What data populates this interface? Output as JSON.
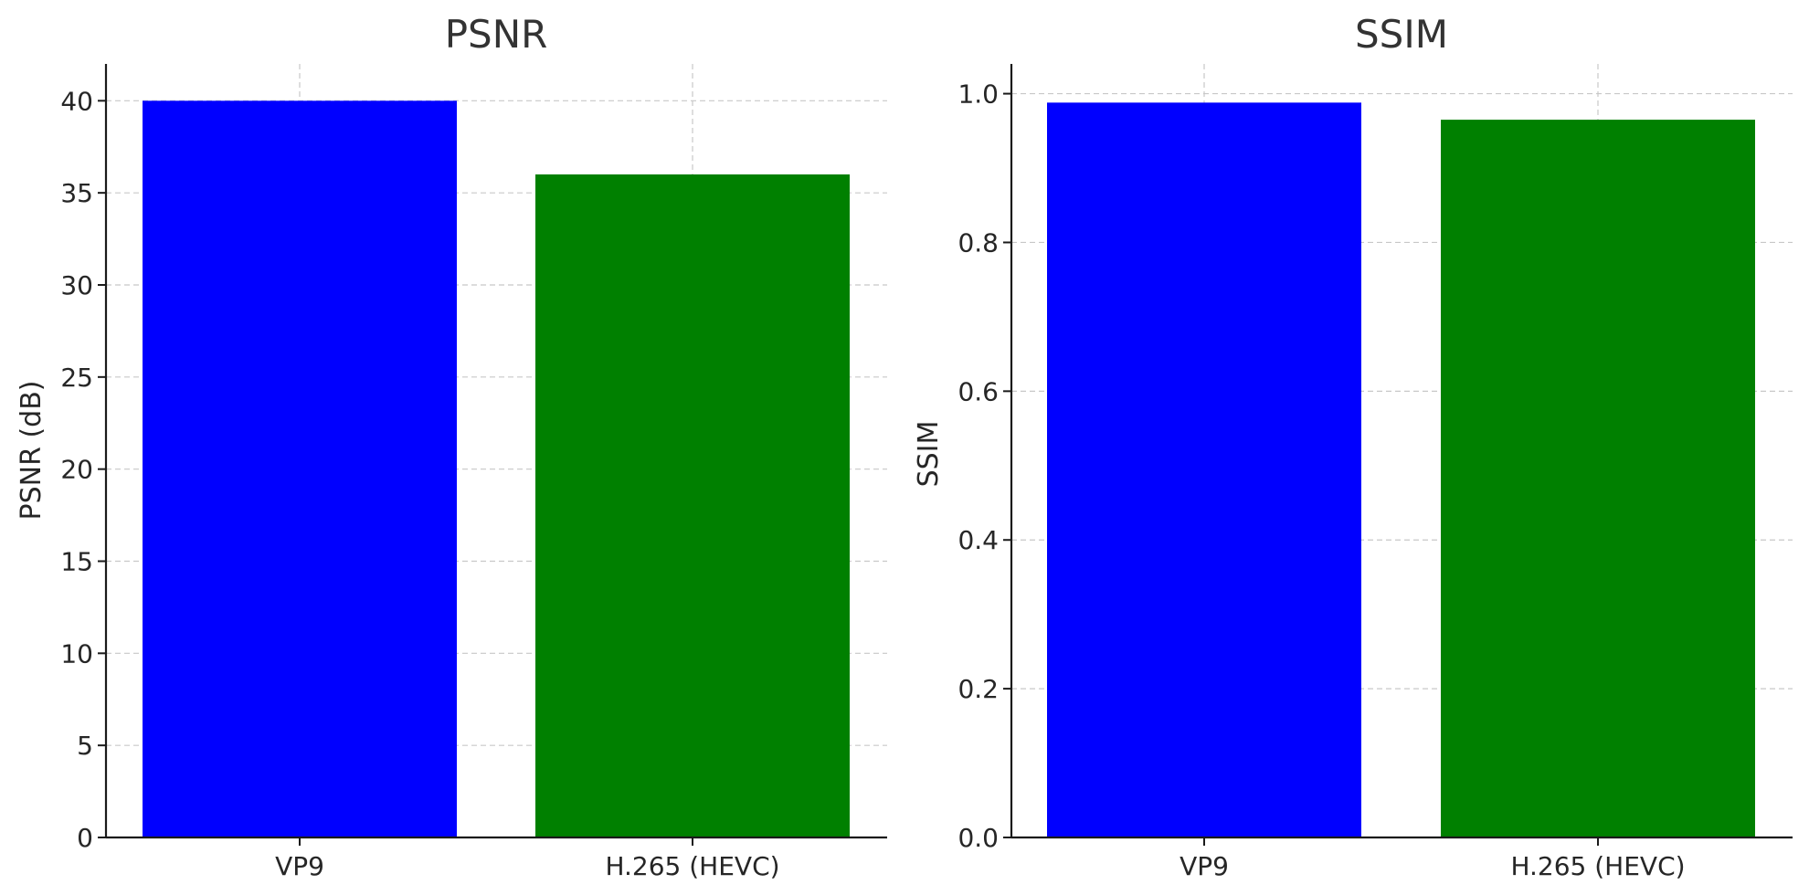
{
  "chart_data": [
    {
      "type": "bar",
      "title": "PSNR",
      "xlabel": "",
      "ylabel": "PSNR (dB)",
      "categories": [
        "VP9",
        "H.265 (HEVC)"
      ],
      "values": [
        40,
        36
      ],
      "colors": [
        "#0000ff",
        "#008000"
      ],
      "ylim": [
        0,
        42
      ],
      "yticks": [
        0,
        5,
        10,
        15,
        20,
        25,
        30,
        35,
        40
      ],
      "ytick_labels": [
        "0",
        "5",
        "10",
        "15",
        "20",
        "25",
        "30",
        "35",
        "40"
      ],
      "grid": true
    },
    {
      "type": "bar",
      "title": "SSIM",
      "xlabel": "",
      "ylabel": "SSIM",
      "categories": [
        "VP9",
        "H.265 (HEVC)"
      ],
      "values": [
        0.988,
        0.965
      ],
      "colors": [
        "#0000ff",
        "#008000"
      ],
      "ylim": [
        0,
        1.04
      ],
      "yticks": [
        0,
        0.2,
        0.4,
        0.6,
        0.8,
        1.0
      ],
      "ytick_labels": [
        "0.0",
        "0.2",
        "0.4",
        "0.6",
        "0.8",
        "1.0"
      ],
      "grid": true
    }
  ]
}
